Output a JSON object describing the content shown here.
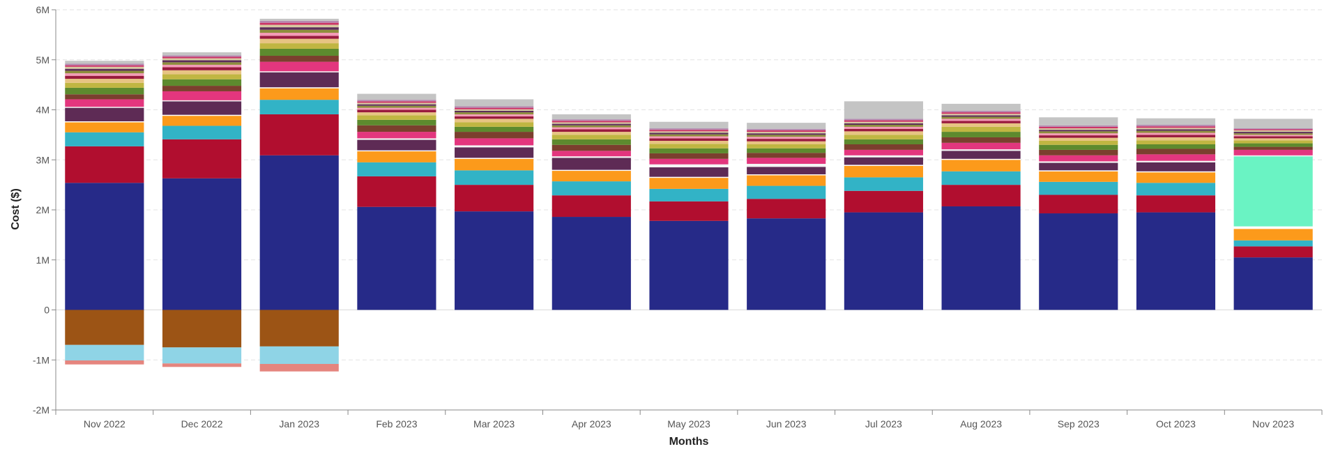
{
  "chart_data": {
    "type": "bar",
    "stacked": true,
    "xlabel": "Months",
    "ylabel": "Cost ($)",
    "ylim": [
      -2000000,
      6000000
    ],
    "y_ticks": [
      {
        "value": 6000000,
        "label": "6M"
      },
      {
        "value": 5000000,
        "label": "5M"
      },
      {
        "value": 4000000,
        "label": "4M"
      },
      {
        "value": 3000000,
        "label": "3M"
      },
      {
        "value": 2000000,
        "label": "2M"
      },
      {
        "value": 1000000,
        "label": "1M"
      },
      {
        "value": 0,
        "label": "0"
      },
      {
        "value": -1000000,
        "label": "-1M"
      },
      {
        "value": -2000000,
        "label": "-2M"
      }
    ],
    "grid": true,
    "legend": "none",
    "categories": [
      "Nov 2022",
      "Dec 2022",
      "Jan 2023",
      "Feb 2023",
      "Mar 2023",
      "Apr 2023",
      "May 2023",
      "Jun 2023",
      "Jul 2023",
      "Aug 2023",
      "Sep 2023",
      "Oct 2023",
      "Nov 2023"
    ],
    "series": [
      {
        "color": "#262a88",
        "values": [
          2540000,
          2630000,
          3090000,
          2060000,
          1970000,
          1860000,
          1780000,
          1830000,
          1950000,
          2070000,
          1930000,
          1950000,
          1050000
        ]
      },
      {
        "color": "#b10e2f",
        "values": [
          730000,
          780000,
          820000,
          610000,
          530000,
          430000,
          390000,
          390000,
          430000,
          430000,
          370000,
          340000,
          220000
        ]
      },
      {
        "color": "#32b3c6",
        "values": [
          280000,
          270000,
          290000,
          280000,
          290000,
          280000,
          250000,
          260000,
          270000,
          270000,
          260000,
          250000,
          120000
        ]
      },
      {
        "color": "#fc9a1b",
        "values": [
          200000,
          200000,
          230000,
          220000,
          230000,
          210000,
          220000,
          210000,
          230000,
          230000,
          210000,
          210000,
          230000
        ]
      },
      {
        "color": "#ffffff",
        "values": [
          20000,
          20000,
          20000,
          20000,
          20000,
          20000,
          20000,
          20000,
          20000,
          20000,
          20000,
          20000,
          50000
        ]
      },
      {
        "color": "#5e2b55",
        "values": [
          270000,
          270000,
          300000,
          210000,
          210000,
          240000,
          190000,
          150000,
          150000,
          160000,
          150000,
          180000,
          0
        ]
      },
      {
        "color": "#6af3c3",
        "values": [
          0,
          0,
          0,
          0,
          0,
          0,
          0,
          0,
          0,
          0,
          0,
          0,
          1400000
        ]
      },
      {
        "color": "#f4f4f4",
        "values": [
          20000,
          20000,
          20000,
          30000,
          40000,
          30000,
          60000,
          60000,
          40000,
          30000,
          30000,
          30000,
          20000
        ]
      },
      {
        "color": "#e3367e",
        "values": [
          150000,
          180000,
          190000,
          130000,
          140000,
          110000,
          110000,
          120000,
          110000,
          130000,
          120000,
          130000,
          110000
        ]
      },
      {
        "color": "#7b3f2e",
        "values": [
          100000,
          110000,
          120000,
          130000,
          130000,
          120000,
          110000,
          100000,
          110000,
          110000,
          110000,
          110000,
          60000
        ]
      },
      {
        "color": "#5d8a2e",
        "values": [
          130000,
          130000,
          140000,
          110000,
          100000,
          110000,
          100000,
          90000,
          100000,
          110000,
          100000,
          90000,
          70000
        ]
      },
      {
        "color": "#c0b642",
        "values": [
          100000,
          100000,
          110000,
          90000,
          90000,
          90000,
          90000,
          80000,
          90000,
          100000,
          80000,
          80000,
          60000
        ]
      },
      {
        "color": "#e7c483",
        "values": [
          80000,
          80000,
          90000,
          60000,
          70000,
          60000,
          60000,
          60000,
          70000,
          70000,
          60000,
          60000,
          40000
        ]
      },
      {
        "color": "#9a1b3e",
        "values": [
          60000,
          60000,
          60000,
          50000,
          50000,
          50000,
          50000,
          50000,
          50000,
          50000,
          50000,
          50000,
          40000
        ]
      },
      {
        "color": "#f39bb6",
        "values": [
          50000,
          50000,
          60000,
          40000,
          40000,
          40000,
          40000,
          40000,
          40000,
          40000,
          40000,
          40000,
          30000
        ]
      },
      {
        "color": "#8e8e3c",
        "values": [
          50000,
          50000,
          60000,
          40000,
          40000,
          40000,
          40000,
          40000,
          40000,
          40000,
          40000,
          40000,
          30000
        ]
      },
      {
        "color": "#5c2e5a",
        "values": [
          40000,
          40000,
          50000,
          30000,
          30000,
          30000,
          30000,
          30000,
          30000,
          30000,
          30000,
          30000,
          30000
        ]
      },
      {
        "color": "#d7c9a0",
        "values": [
          40000,
          40000,
          50000,
          30000,
          30000,
          30000,
          30000,
          30000,
          30000,
          30000,
          30000,
          30000,
          30000
        ]
      },
      {
        "color": "#cc3366",
        "values": [
          30000,
          30000,
          40000,
          30000,
          30000,
          30000,
          30000,
          30000,
          30000,
          30000,
          30000,
          30000,
          20000
        ]
      },
      {
        "color": "#b58ab0",
        "values": [
          30000,
          30000,
          40000,
          30000,
          30000,
          30000,
          30000,
          30000,
          30000,
          30000,
          30000,
          30000,
          20000
        ]
      },
      {
        "color": "#c4c4c4",
        "values": [
          60000,
          60000,
          40000,
          120000,
          140000,
          100000,
          130000,
          120000,
          350000,
          140000,
          160000,
          130000,
          190000
        ]
      },
      {
        "color": "#9c5415",
        "values": [
          -700000,
          -750000,
          -730000,
          0,
          0,
          0,
          0,
          0,
          0,
          0,
          0,
          0,
          0
        ]
      },
      {
        "color": "#8fd4e6",
        "values": [
          -310000,
          -320000,
          -350000,
          0,
          0,
          0,
          0,
          0,
          0,
          0,
          0,
          0,
          0
        ]
      },
      {
        "color": "#e5857e",
        "values": [
          -80000,
          -70000,
          -150000,
          0,
          0,
          0,
          0,
          0,
          0,
          0,
          0,
          0,
          0
        ]
      }
    ]
  }
}
